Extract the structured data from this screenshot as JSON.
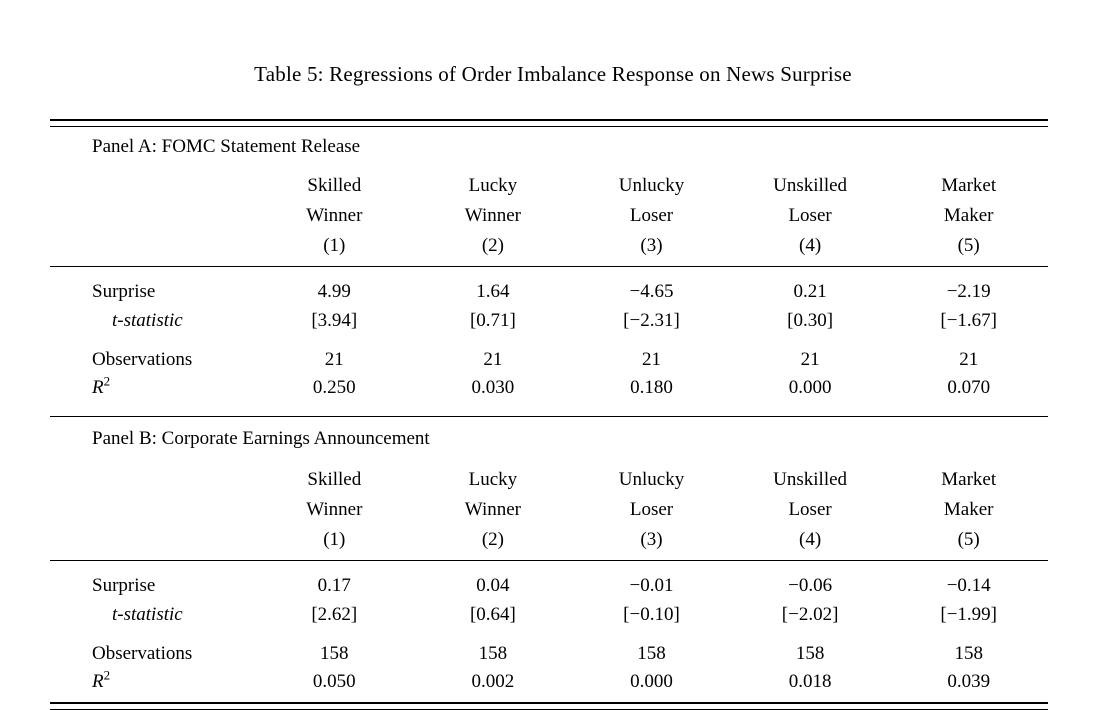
{
  "title": "Table 5: Regressions of Order Imbalance Response on News Surprise",
  "panels": [
    {
      "name": "Panel A: FOMC Statement Release",
      "columns": [
        {
          "line1": "Skilled",
          "line2": "Winner",
          "num": "(1)"
        },
        {
          "line1": "Lucky",
          "line2": "Winner",
          "num": "(2)"
        },
        {
          "line1": "Unlucky",
          "line2": "Loser",
          "num": "(3)"
        },
        {
          "line1": "Unskilled",
          "line2": "Loser",
          "num": "(4)"
        },
        {
          "line1": "Market",
          "line2": "Maker",
          "num": "(5)"
        }
      ],
      "rows": [
        {
          "label": "Surprise",
          "values": [
            "4.99",
            "1.64",
            "−4.65",
            "0.21",
            "−2.19"
          ]
        },
        {
          "label": "t-statistic",
          "values": [
            "[3.94]",
            "[0.71]",
            "[−2.31]",
            "[0.30]",
            "[−1.67]"
          ]
        },
        {
          "label": "Observations",
          "values": [
            "21",
            "21",
            "21",
            "21",
            "21"
          ]
        },
        {
          "label_main": "R",
          "label_sup": "2",
          "values": [
            "0.250",
            "0.030",
            "0.180",
            "0.000",
            "0.070"
          ]
        }
      ]
    },
    {
      "name": "Panel B: Corporate Earnings Announcement",
      "columns": [
        {
          "line1": "Skilled",
          "line2": "Winner",
          "num": "(1)"
        },
        {
          "line1": "Lucky",
          "line2": "Winner",
          "num": "(2)"
        },
        {
          "line1": "Unlucky",
          "line2": "Loser",
          "num": "(3)"
        },
        {
          "line1": "Unskilled",
          "line2": "Loser",
          "num": "(4)"
        },
        {
          "line1": "Market",
          "line2": "Maker",
          "num": "(5)"
        }
      ],
      "rows": [
        {
          "label": "Surprise",
          "values": [
            "0.17",
            "0.04",
            "−0.01",
            "−0.06",
            "−0.14"
          ]
        },
        {
          "label": "t-statistic",
          "values": [
            "[2.62]",
            "[0.64]",
            "[−0.10]",
            "[−2.02]",
            "[−1.99]"
          ]
        },
        {
          "label": "Observations",
          "values": [
            "158",
            "158",
            "158",
            "158",
            "158"
          ]
        },
        {
          "label_main": "R",
          "label_sup": "2",
          "values": [
            "0.050",
            "0.002",
            "0.000",
            "0.018",
            "0.039"
          ]
        }
      ]
    }
  ]
}
